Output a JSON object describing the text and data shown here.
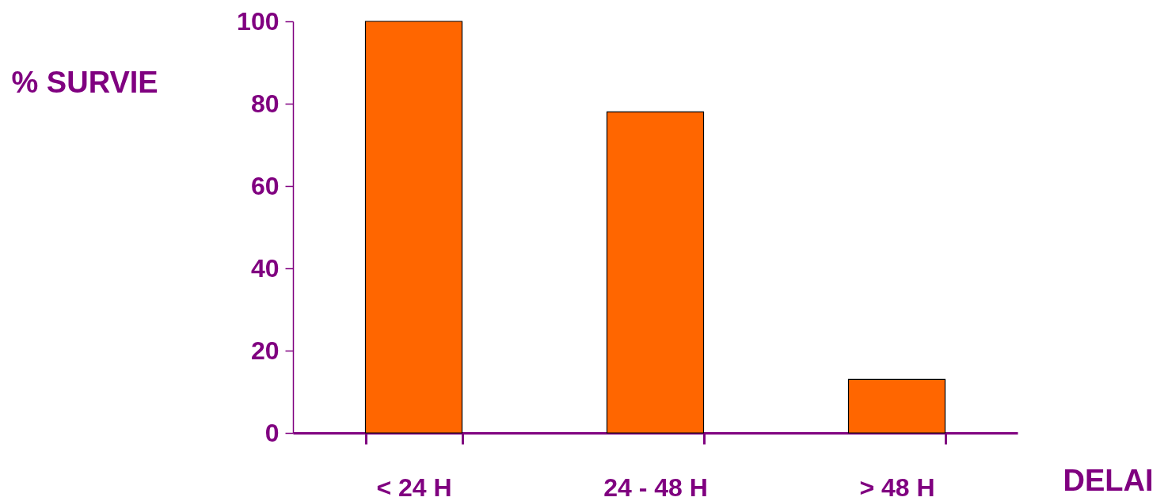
{
  "chart_data": {
    "type": "bar",
    "ylabel": "% SURVIE",
    "xlabel": "DELAI",
    "categories": [
      "< 24 H",
      "24 - 48 H",
      "> 48 H"
    ],
    "values": [
      100,
      78,
      13
    ],
    "color": "#ff6600",
    "ylim": [
      0,
      100
    ],
    "yticks": [
      0,
      20,
      40,
      60,
      80,
      100
    ],
    "grid": false
  }
}
